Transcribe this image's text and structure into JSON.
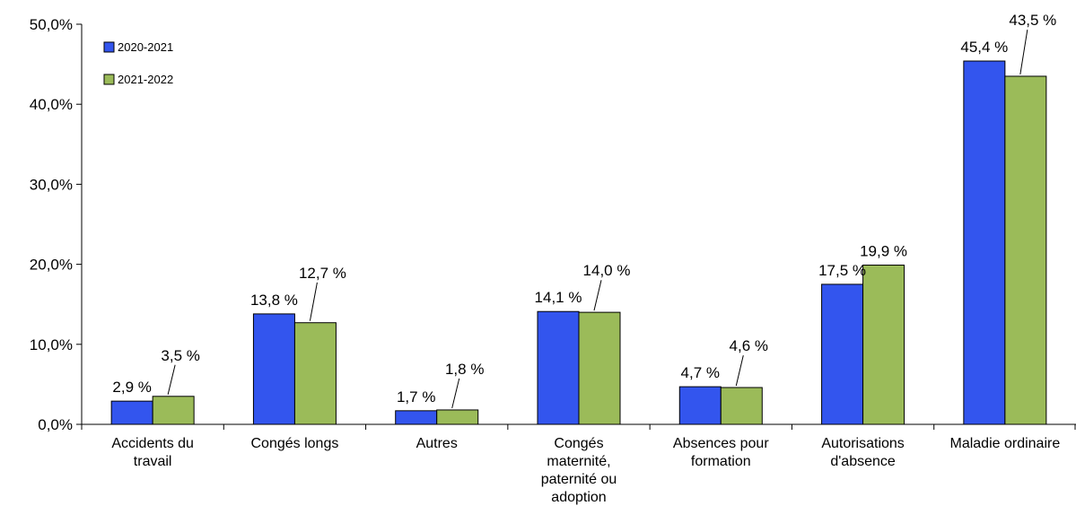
{
  "chart_data": {
    "type": "bar",
    "categories": [
      [
        "Accidents du",
        "travail"
      ],
      [
        "Congés longs"
      ],
      [
        "Autres"
      ],
      [
        "Congés",
        "maternité,",
        "paternité ou",
        "adoption"
      ],
      [
        "Absences pour",
        "formation"
      ],
      [
        "Autorisations",
        "d'absence"
      ],
      [
        "Maladie ordinaire"
      ]
    ],
    "series": [
      {
        "name": "2020-2021",
        "color": "#3355ee",
        "values": [
          2.9,
          13.8,
          1.7,
          14.1,
          4.7,
          17.5,
          45.4
        ],
        "labels": [
          "2,9 %",
          "13,8 %",
          "1,7 %",
          "14,1 %",
          "4,7 %",
          "17,5 %",
          "45,4 %"
        ]
      },
      {
        "name": "2021-2022",
        "color": "#9bbb59",
        "values": [
          3.5,
          12.7,
          1.8,
          14.0,
          4.6,
          19.9,
          43.5
        ],
        "labels": [
          "3,5 %",
          "12,7 %",
          "1,8 %",
          "14,0 %",
          "4,6 %",
          "19,9 %",
          "43,5 %"
        ]
      }
    ],
    "yticks": [
      "0,0%",
      "10,0%",
      "20,0%",
      "30,0%",
      "40,0%",
      "50,0%"
    ],
    "ylim": [
      0,
      50
    ],
    "grid": false,
    "legend_position": "top-left",
    "title": "",
    "xlabel": "",
    "ylabel": ""
  }
}
